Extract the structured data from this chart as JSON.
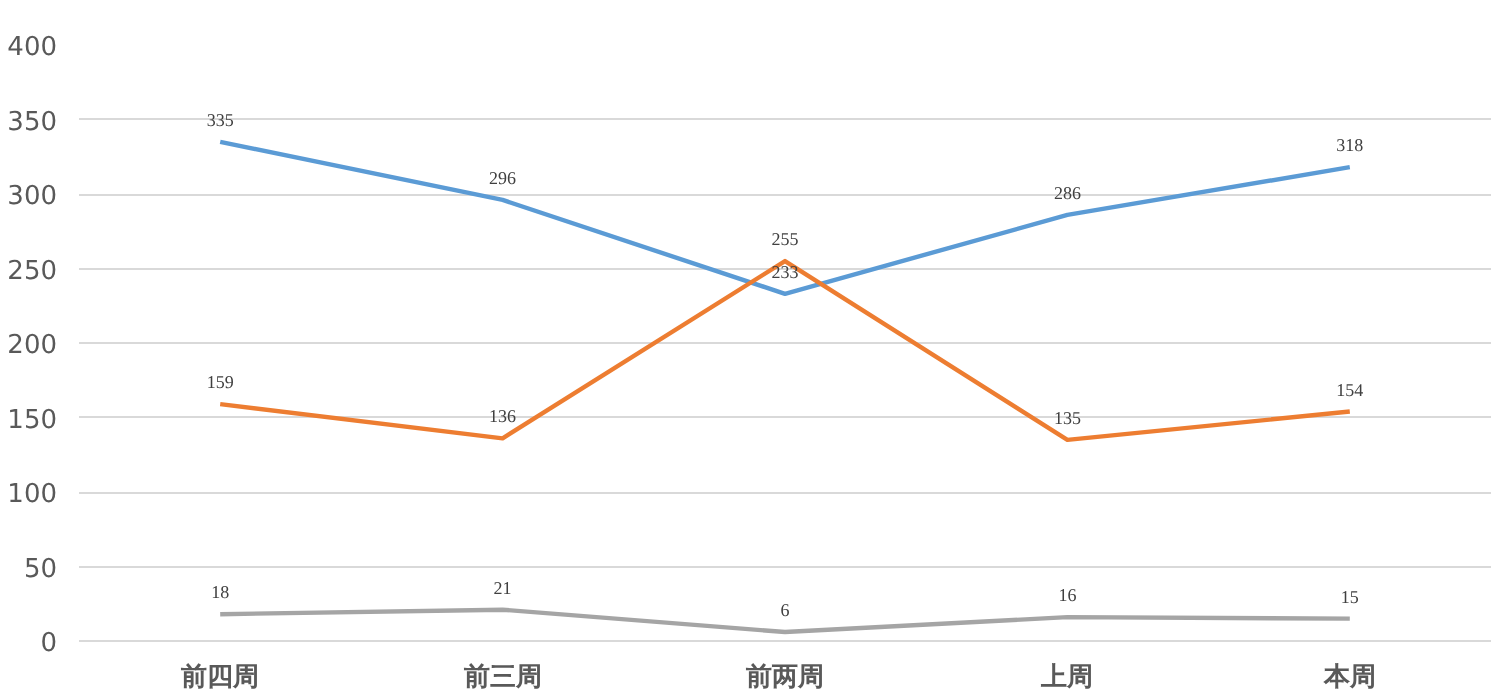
{
  "chart_data": {
    "type": "line",
    "categories": [
      "前四周",
      "前三周",
      "前两周",
      "上周",
      "本周"
    ],
    "series": [
      {
        "color": "#5b9bd5",
        "values": [
          335,
          296,
          233,
          286,
          318
        ]
      },
      {
        "color": "#ed7d31",
        "values": [
          159,
          136,
          255,
          135,
          154
        ]
      },
      {
        "color": "#a5a5a5",
        "values": [
          18,
          21,
          6,
          16,
          15
        ]
      }
    ],
    "ylim": [
      0,
      400
    ],
    "yticks": [
      0,
      50,
      100,
      150,
      200,
      250,
      300,
      350,
      400
    ],
    "grid": "y",
    "data_labels": true,
    "marker": "none",
    "line_style": "solid"
  }
}
